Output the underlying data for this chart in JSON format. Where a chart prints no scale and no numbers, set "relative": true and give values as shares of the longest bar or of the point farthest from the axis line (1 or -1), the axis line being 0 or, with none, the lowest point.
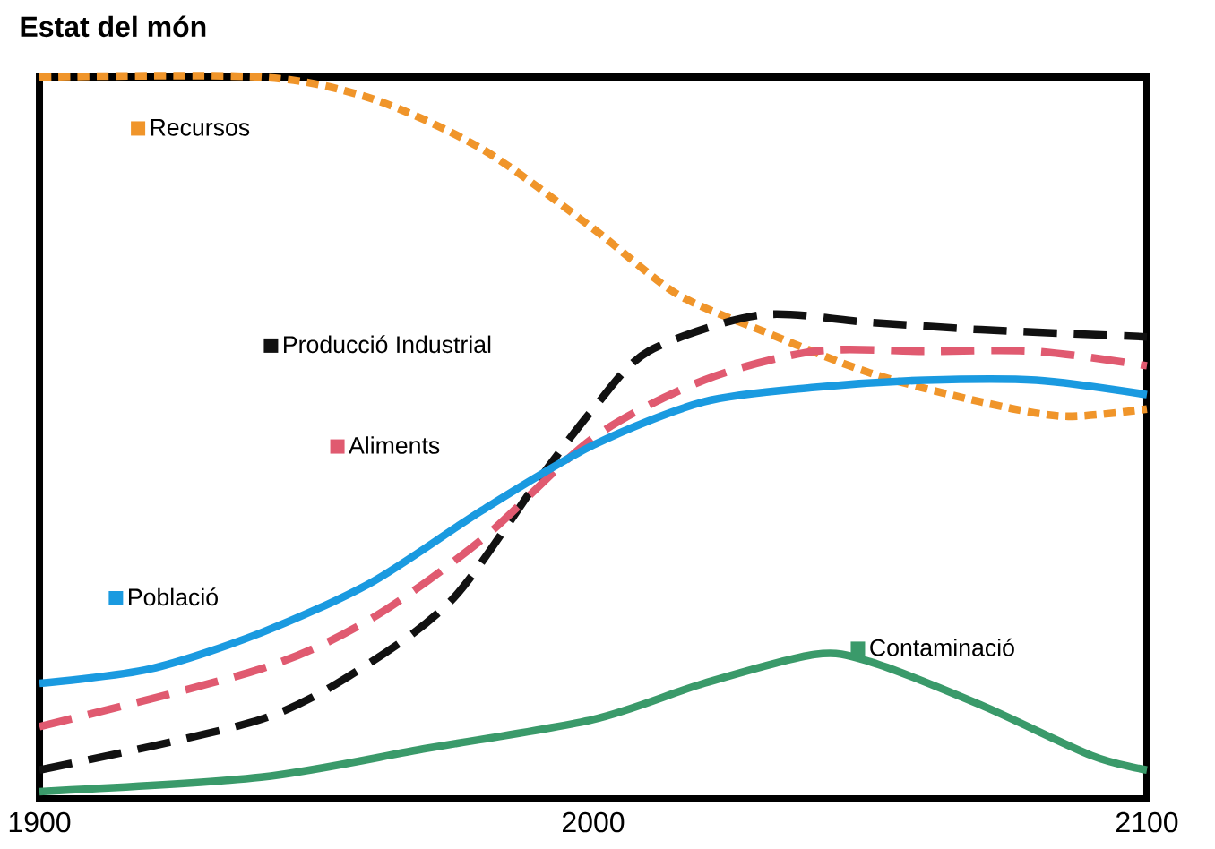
{
  "chart_data": {
    "type": "line",
    "title": "Estat del món",
    "relative": true,
    "tick_labels": "x",
    "xlim": [
      1900,
      2100
    ],
    "xticks": [
      1900,
      2000,
      2100
    ],
    "grid": false,
    "legend": "top left",
    "marker": "none",
    "series": [
      {
        "name": "Recursos",
        "color": "#f0952a",
        "line_style": "dotted",
        "x": [
          1900,
          1940,
          1960,
          1980,
          2000,
          2015,
          2030,
          2050,
          2070,
          2085,
          2100
        ],
        "values": [
          1.0,
          1.0,
          0.97,
          0.9,
          0.79,
          0.7,
          0.65,
          0.59,
          0.55,
          0.53,
          0.54
        ]
      },
      {
        "name": "Producció Industrial",
        "color": "#111111",
        "line_style": "dashed",
        "x": [
          1900,
          1940,
          1960,
          1975,
          1990,
          2000,
          2010,
          2030,
          2050,
          2070,
          2100
        ],
        "values": [
          0.04,
          0.11,
          0.19,
          0.28,
          0.44,
          0.54,
          0.62,
          0.67,
          0.66,
          0.65,
          0.64
        ]
      },
      {
        "name": "Aliments",
        "color": "#e05a70",
        "line_style": "dashed",
        "x": [
          1900,
          1940,
          1960,
          1980,
          2000,
          2020,
          2040,
          2060,
          2080,
          2100
        ],
        "values": [
          0.1,
          0.18,
          0.25,
          0.36,
          0.5,
          0.58,
          0.62,
          0.62,
          0.62,
          0.6
        ]
      },
      {
        "name": "Població",
        "color": "#1a9ae0",
        "line_style": "solid",
        "x": [
          1900,
          1920,
          1940,
          1960,
          1980,
          2000,
          2020,
          2040,
          2060,
          2080,
          2100
        ],
        "values": [
          0.16,
          0.18,
          0.23,
          0.3,
          0.4,
          0.49,
          0.55,
          0.57,
          0.58,
          0.58,
          0.56
        ]
      },
      {
        "name": "Contaminació",
        "color": "#3a9a6a",
        "line_style": "solid",
        "x": [
          1900,
          1940,
          1970,
          2000,
          2020,
          2040,
          2050,
          2070,
          2090,
          2100
        ],
        "values": [
          0.01,
          0.03,
          0.07,
          0.11,
          0.16,
          0.2,
          0.19,
          0.13,
          0.06,
          0.04
        ]
      }
    ]
  }
}
